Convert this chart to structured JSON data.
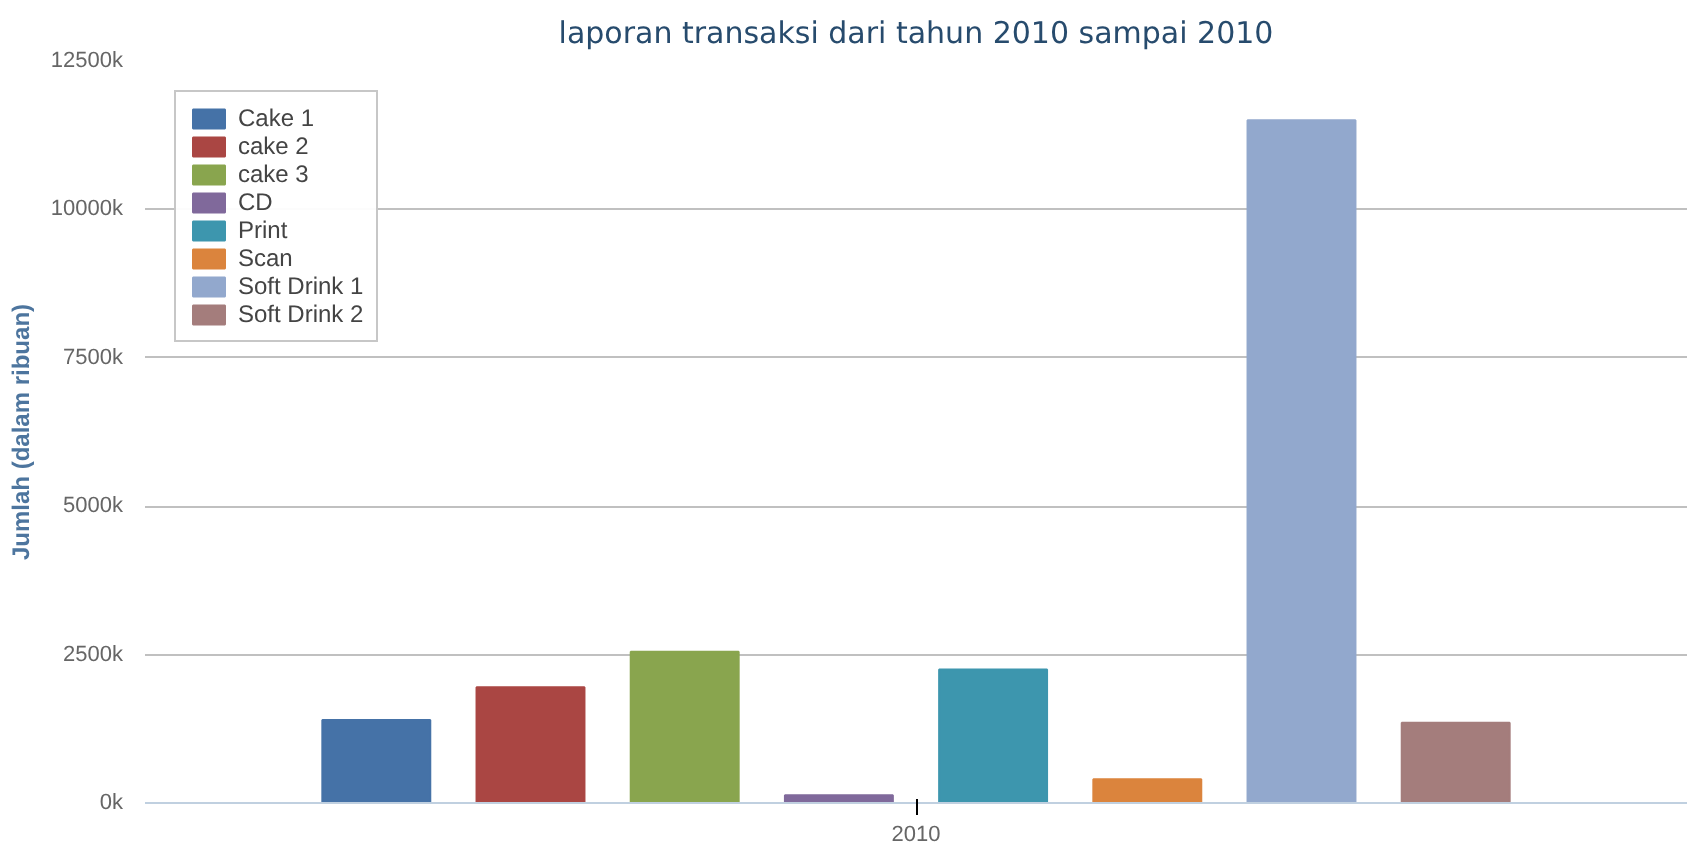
{
  "chart_data": {
    "type": "bar",
    "title": "laporan transaksi dari tahun 2010 sampai 2010",
    "ylabel": "Jumlah (dalam ribuan)",
    "categories": [
      "2010"
    ],
    "series": [
      {
        "name": "Cake 1",
        "color": "#4572a7",
        "values": [
          1400
        ]
      },
      {
        "name": "cake 2",
        "color": "#aa4643",
        "values": [
          1950
        ]
      },
      {
        "name": "cake 3",
        "color": "#89a54e",
        "values": [
          2550
        ]
      },
      {
        "name": "CD",
        "color": "#80699b",
        "values": [
          130
        ]
      },
      {
        "name": "Print",
        "color": "#3d96ae",
        "values": [
          2250
        ]
      },
      {
        "name": "Scan",
        "color": "#db843d",
        "values": [
          400
        ]
      },
      {
        "name": "Soft Drink 1",
        "color": "#92a8cd",
        "values": [
          11500
        ]
      },
      {
        "name": "Soft Drink 2",
        "color": "#a47d7c",
        "values": [
          1350
        ]
      }
    ],
    "ylim": [
      0,
      12500
    ],
    "yticks": [
      {
        "value": 0,
        "label": "0k"
      },
      {
        "value": 2500,
        "label": "2500k"
      },
      {
        "value": 5000,
        "label": "5000k"
      },
      {
        "value": 7500,
        "label": "7500k"
      },
      {
        "value": 10000,
        "label": "10000k"
      },
      {
        "value": 12500,
        "label": "12500k"
      }
    ],
    "grid": "y",
    "legend": "top left"
  }
}
